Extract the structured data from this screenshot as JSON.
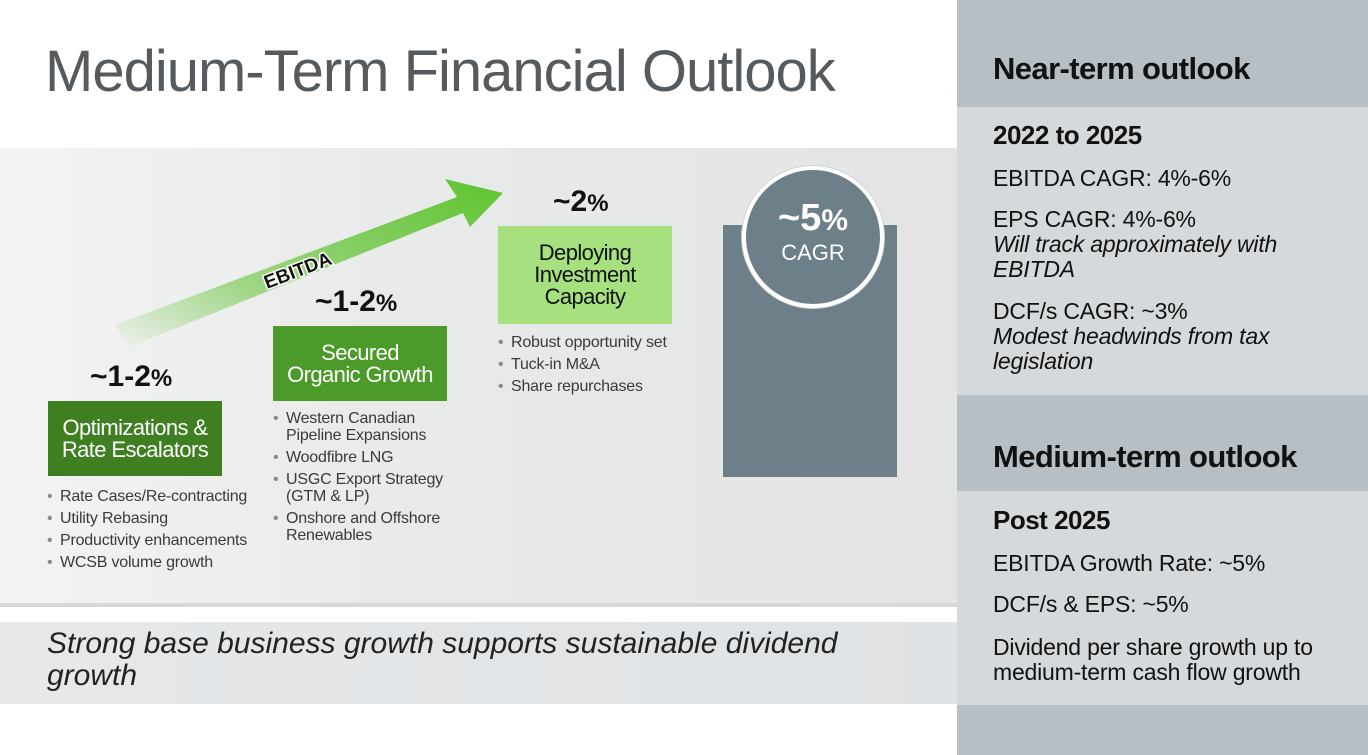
{
  "title": "Medium-Term Financial Outlook",
  "arrow_label": "EBITDA",
  "steps": [
    {
      "pct_main": "~1-2",
      "pct_sign": "%",
      "box_lines": [
        "Optimizations &",
        "Rate Escalators"
      ],
      "bullets": [
        "Rate Cases/Re-contracting",
        "Utility Rebasing",
        "Productivity enhancements",
        "WCSB volume growth"
      ]
    },
    {
      "pct_main": "~1-2",
      "pct_sign": "%",
      "box_lines": [
        "Secured",
        "Organic Growth"
      ],
      "bullets": [
        "Western Canadian Pipeline Expansions",
        "Woodfibre LNG",
        "USGC Export Strategy (GTM & LP)",
        "Onshore and Offshore Renewables"
      ]
    },
    {
      "pct_main": "~2",
      "pct_sign": "%",
      "box_lines": [
        "Deploying",
        "Investment",
        "Capacity"
      ],
      "bullets": [
        "Robust opportunity set",
        "Tuck-in M&A",
        "Share repurchases"
      ]
    }
  ],
  "cagr": {
    "value_main": "~5",
    "value_sign": "%",
    "label": "CAGR"
  },
  "footer": "Strong base business growth supports sustainable dividend growth",
  "near_term": {
    "title": "Near-term outlook",
    "period": "2022 to 2025",
    "items": [
      {
        "text": "EBITDA CAGR: 4%-6%",
        "note": ""
      },
      {
        "text": "EPS CAGR: 4%-6%",
        "note": "Will track approximately with EBITDA"
      },
      {
        "text": "DCF/s CAGR: ~3%",
        "note": "Modest headwinds from tax legislation"
      }
    ]
  },
  "medium_term": {
    "title": "Medium-term outlook",
    "period": "Post 2025",
    "items": [
      {
        "text": "EBITDA Growth Rate: ~5%"
      },
      {
        "text": "DCF/s & EPS: ~5%"
      },
      {
        "text": "Dividend per share growth up to medium-term cash flow growth"
      }
    ]
  },
  "colors": {
    "box1": "#3f7f22",
    "box2": "#4b9a2a",
    "box3": "#a6e07f",
    "arrow": "#5ec42e",
    "cagr": "#6d7f89",
    "panel_head": "#b7bfc4",
    "panel_body": "#d5d9dc"
  }
}
